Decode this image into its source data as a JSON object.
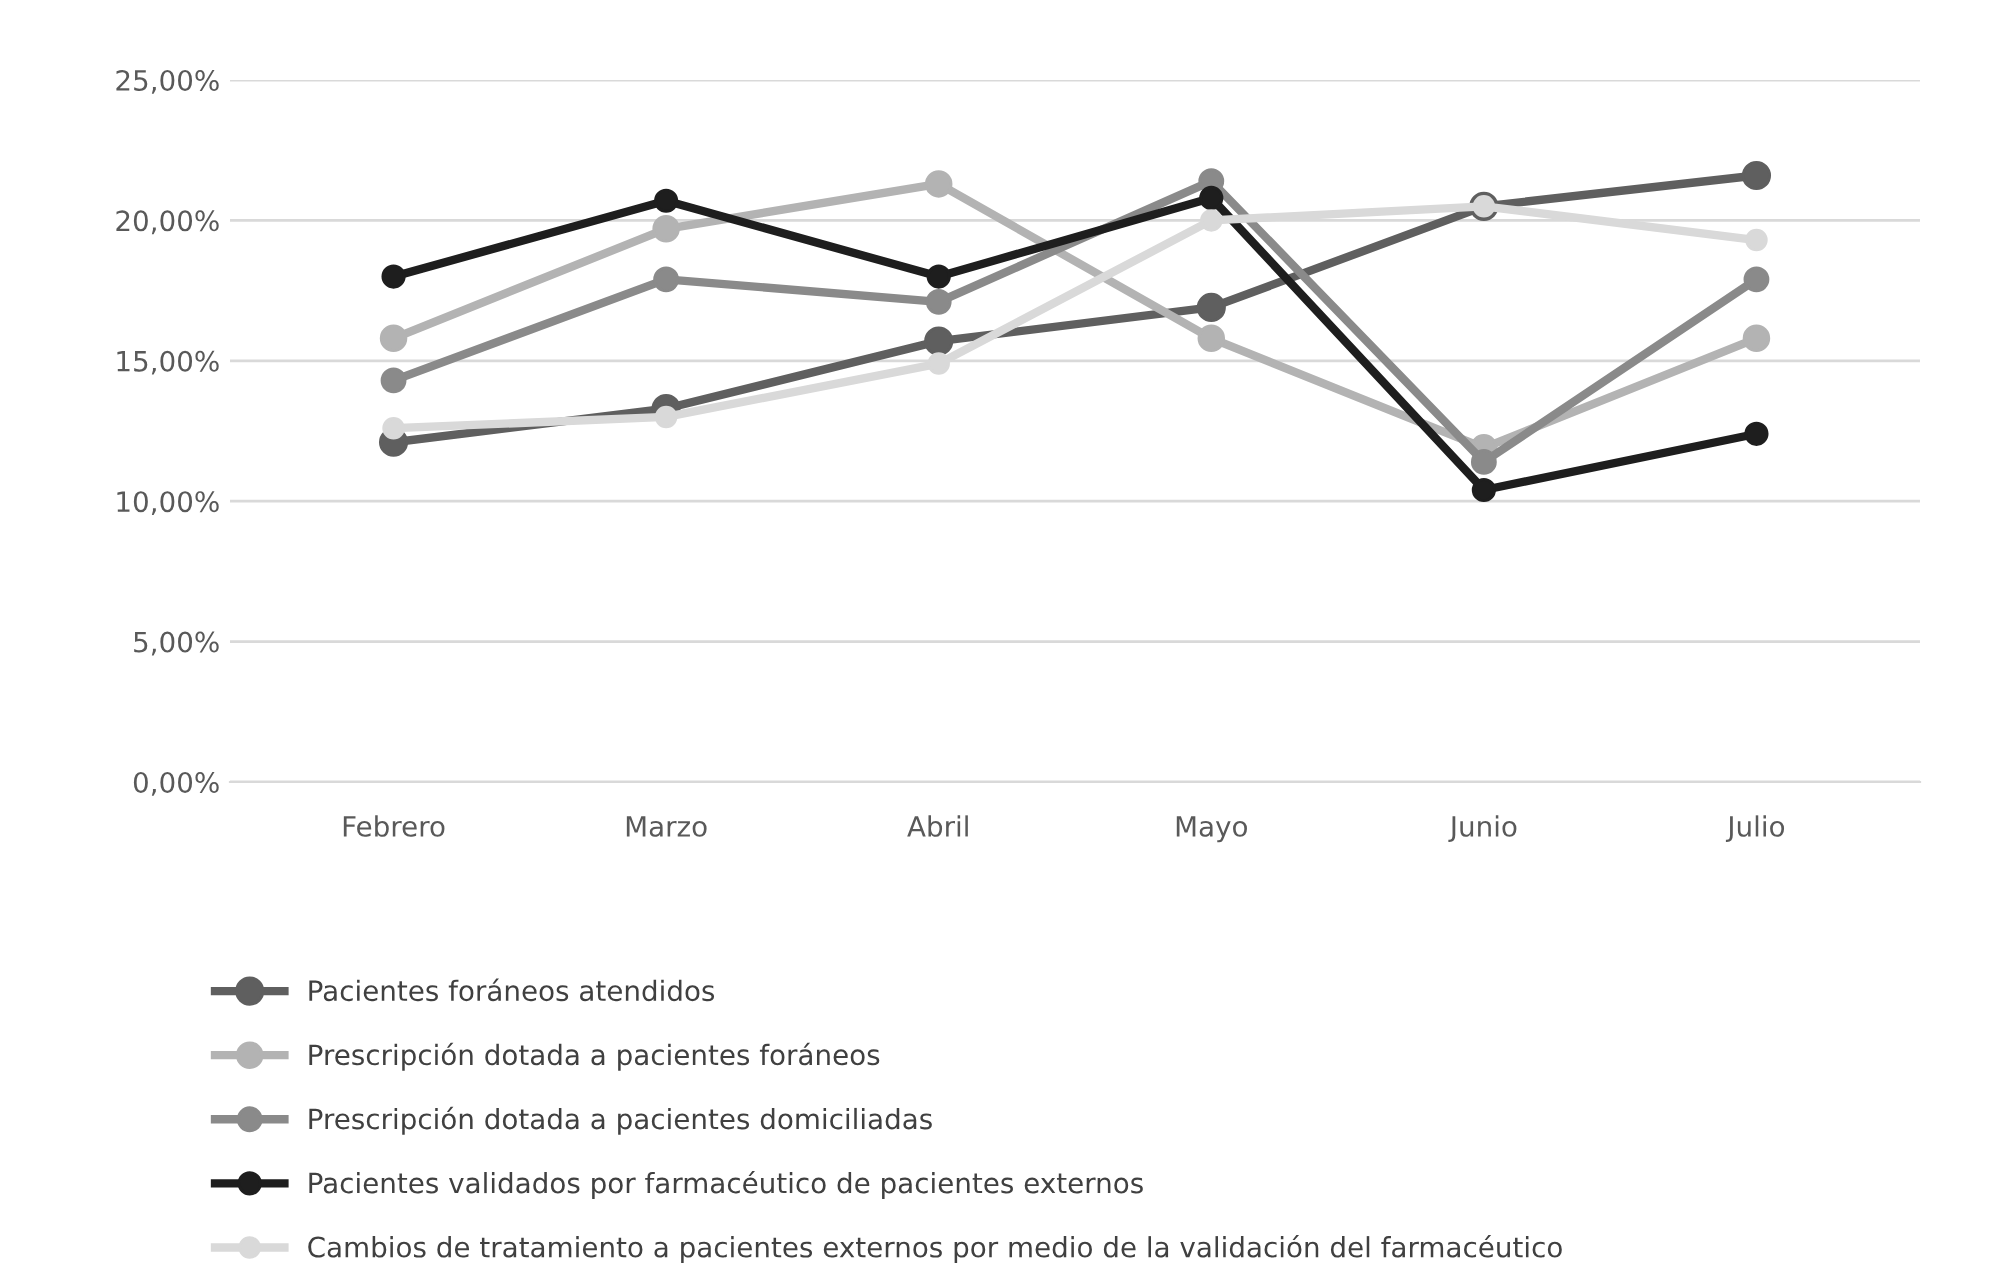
{
  "chart_data": {
    "type": "line",
    "categories": [
      "Febrero",
      "Marzo",
      "Abril",
      "Mayo",
      "Junio",
      "Julio"
    ],
    "series": [
      {
        "name": "Pacientes foráneos atendidos",
        "color": "#5f5f5f",
        "values": [
          12.1,
          13.3,
          15.7,
          16.9,
          20.5,
          21.6
        ]
      },
      {
        "name": "Prescripción dotada a pacientes foráneos",
        "color": "#b3b3b3",
        "values": [
          15.8,
          19.7,
          21.3,
          15.8,
          11.9,
          15.8
        ]
      },
      {
        "name": "Prescripción dotada a pacientes domiciliadas",
        "color": "#8a8a8a",
        "values": [
          14.3,
          17.9,
          17.1,
          21.4,
          11.4,
          17.9
        ]
      },
      {
        "name": "Pacientes validados por farmacéutico de pacientes externos",
        "color": "#1e1e1e",
        "values": [
          18.0,
          20.7,
          18.0,
          20.8,
          10.4,
          12.4
        ]
      },
      {
        "name": "Cambios de tratamiento a pacientes externos por medio de la validación del farmacéutico",
        "color": "#d9d9d9",
        "values": [
          12.6,
          13.0,
          14.9,
          20.0,
          20.5,
          19.3
        ]
      }
    ],
    "ylim": [
      0,
      25
    ],
    "yticks": [
      {
        "value": 0,
        "label": "0,00%"
      },
      {
        "value": 5,
        "label": "5,00%"
      },
      {
        "value": 10,
        "label": "10,00%"
      },
      {
        "value": 15,
        "label": "15,00%"
      },
      {
        "value": 20,
        "label": "20,00%"
      },
      {
        "value": 25,
        "label": "25,00%"
      }
    ],
    "grid": "y",
    "legend": "bottom",
    "marker": "circle",
    "line_style": "solid"
  }
}
